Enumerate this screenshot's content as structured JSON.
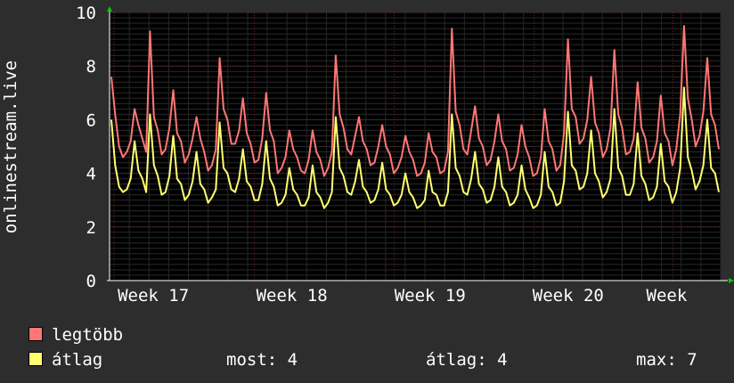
{
  "chart_data": {
    "type": "line",
    "ylabel": "onlinestream.live",
    "ylim": [
      0,
      10
    ],
    "yticks": [
      0,
      2,
      4,
      6,
      8,
      10
    ],
    "xticks": [
      "Week 17",
      "Week 18",
      "Week 19",
      "Week 20",
      "Week"
    ],
    "grid": true,
    "series": [
      {
        "name": "legtöbb",
        "color": "#ff7676",
        "values": [
          7.6,
          6.2,
          5.0,
          4.6,
          4.8,
          5.2,
          6.4,
          5.8,
          5.3,
          4.8,
          9.3,
          6.1,
          5.6,
          4.7,
          4.9,
          5.7,
          7.1,
          5.5,
          5.2,
          4.4,
          4.7,
          5.3,
          6.1,
          5.3,
          4.8,
          4.1,
          4.3,
          4.9,
          8.3,
          6.4,
          6.0,
          5.1,
          5.1,
          5.6,
          6.8,
          5.5,
          5.1,
          4.4,
          4.5,
          5.3,
          7.0,
          5.6,
          5.2,
          4.0,
          4.2,
          4.6,
          5.6,
          4.9,
          4.6,
          4.1,
          4.0,
          4.5,
          5.6,
          4.8,
          4.5,
          3.9,
          4.2,
          4.8,
          8.4,
          6.2,
          5.7,
          4.9,
          4.7,
          5.4,
          6.1,
          5.2,
          4.9,
          4.3,
          4.4,
          5.0,
          5.8,
          5.0,
          4.7,
          4.0,
          4.2,
          4.6,
          5.4,
          4.8,
          4.5,
          3.9,
          4.0,
          4.4,
          5.5,
          4.8,
          4.6,
          4.0,
          4.1,
          4.8,
          9.4,
          6.3,
          5.8,
          4.9,
          4.7,
          5.6,
          6.5,
          5.3,
          5.0,
          4.3,
          4.5,
          5.2,
          6.2,
          5.2,
          4.9,
          4.1,
          4.2,
          4.7,
          5.8,
          5.0,
          4.6,
          3.9,
          4.0,
          4.6,
          6.4,
          5.2,
          4.9,
          4.1,
          4.3,
          5.5,
          9.0,
          6.4,
          6.1,
          5.1,
          5.3,
          6.0,
          7.6,
          5.9,
          5.5,
          4.6,
          4.9,
          5.7,
          8.6,
          6.2,
          5.7,
          4.7,
          4.8,
          5.3,
          7.4,
          5.7,
          5.3,
          4.4,
          4.6,
          5.2,
          6.9,
          5.5,
          5.2,
          4.3,
          4.9,
          6.2,
          9.5,
          6.8,
          6.0,
          5.0,
          5.4,
          6.3,
          8.3,
          6.2,
          5.8,
          4.9
        ]
      },
      {
        "name": "átlag",
        "color": "#ffff70",
        "values": [
          6.0,
          4.3,
          3.5,
          3.3,
          3.4,
          3.8,
          5.2,
          4.1,
          3.8,
          3.3,
          6.2,
          4.3,
          3.9,
          3.2,
          3.3,
          3.9,
          5.4,
          3.8,
          3.6,
          3.0,
          3.2,
          3.7,
          4.8,
          3.6,
          3.4,
          2.9,
          3.1,
          3.4,
          5.9,
          4.2,
          4.0,
          3.4,
          3.3,
          3.8,
          4.9,
          3.7,
          3.5,
          3.0,
          3.0,
          3.6,
          5.2,
          3.8,
          3.5,
          2.8,
          2.9,
          3.2,
          4.2,
          3.4,
          3.2,
          2.8,
          2.8,
          3.1,
          4.3,
          3.3,
          3.1,
          2.7,
          2.9,
          3.3,
          6.1,
          4.2,
          3.9,
          3.3,
          3.2,
          3.7,
          4.5,
          3.5,
          3.3,
          2.9,
          3.0,
          3.4,
          4.4,
          3.4,
          3.2,
          2.8,
          2.9,
          3.2,
          4.0,
          3.3,
          3.1,
          2.7,
          2.8,
          3.0,
          4.1,
          3.3,
          3.2,
          2.8,
          2.8,
          3.3,
          6.2,
          4.2,
          3.9,
          3.3,
          3.2,
          3.8,
          4.8,
          3.6,
          3.4,
          2.9,
          3.0,
          3.5,
          4.6,
          3.5,
          3.3,
          2.8,
          2.9,
          3.2,
          4.3,
          3.4,
          3.1,
          2.7,
          2.8,
          3.2,
          4.8,
          3.5,
          3.3,
          2.8,
          2.9,
          3.7,
          6.3,
          4.3,
          4.1,
          3.4,
          3.5,
          4.0,
          5.6,
          4.0,
          3.7,
          3.1,
          3.3,
          3.8,
          6.4,
          4.2,
          3.9,
          3.2,
          3.2,
          3.6,
          5.5,
          3.9,
          3.6,
          3.0,
          3.1,
          3.5,
          5.1,
          3.7,
          3.5,
          2.9,
          3.3,
          4.2,
          7.2,
          4.6,
          4.1,
          3.4,
          3.7,
          4.3,
          6.0,
          4.2,
          4.0,
          3.3
        ]
      }
    ]
  },
  "legend": {
    "stats": [
      {
        "label": "most:",
        "value": "4"
      },
      {
        "label": "átlag:",
        "value": "4"
      },
      {
        "label": "max:",
        "value": "7"
      }
    ]
  }
}
